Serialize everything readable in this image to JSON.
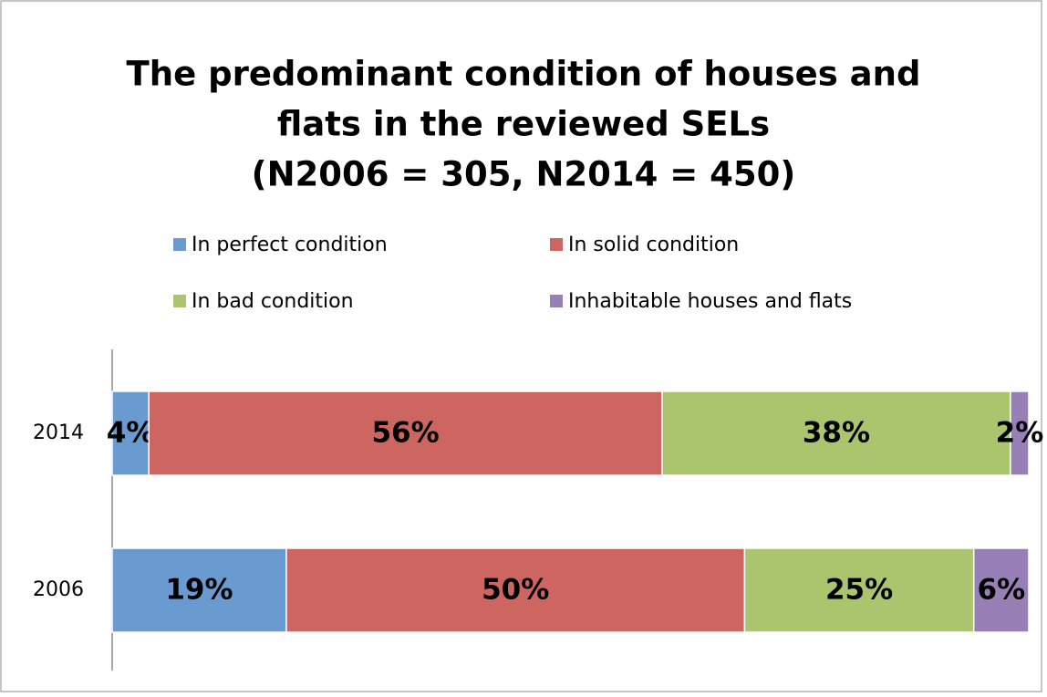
{
  "chart_data": {
    "type": "bar",
    "orientation": "horizontal",
    "stacked": true,
    "title": [
      "The predominant condition of houses and",
      "flats in the reviewed SELs",
      "(N2006 = 305, N2014 = 450)"
    ],
    "categories": [
      "2014",
      "2006"
    ],
    "xlim": [
      0,
      100
    ],
    "series": [
      {
        "name": "In perfect condition",
        "color": "#6a9bd0",
        "values": [
          4,
          19
        ],
        "value_labels": [
          "4%",
          "19%"
        ]
      },
      {
        "name": "In solid condition",
        "color": "#cd6660",
        "values": [
          56,
          50
        ],
        "value_labels": [
          "56%",
          "50%"
        ]
      },
      {
        "name": "In bad condition",
        "color": "#abc46e",
        "values": [
          38,
          25
        ],
        "value_labels": [
          "38%",
          "25%"
        ]
      },
      {
        "name": "Inhabitable houses and flats",
        "color": "#9880b6",
        "values": [
          2,
          6
        ],
        "value_labels": [
          "2%",
          "6%"
        ]
      }
    ]
  }
}
